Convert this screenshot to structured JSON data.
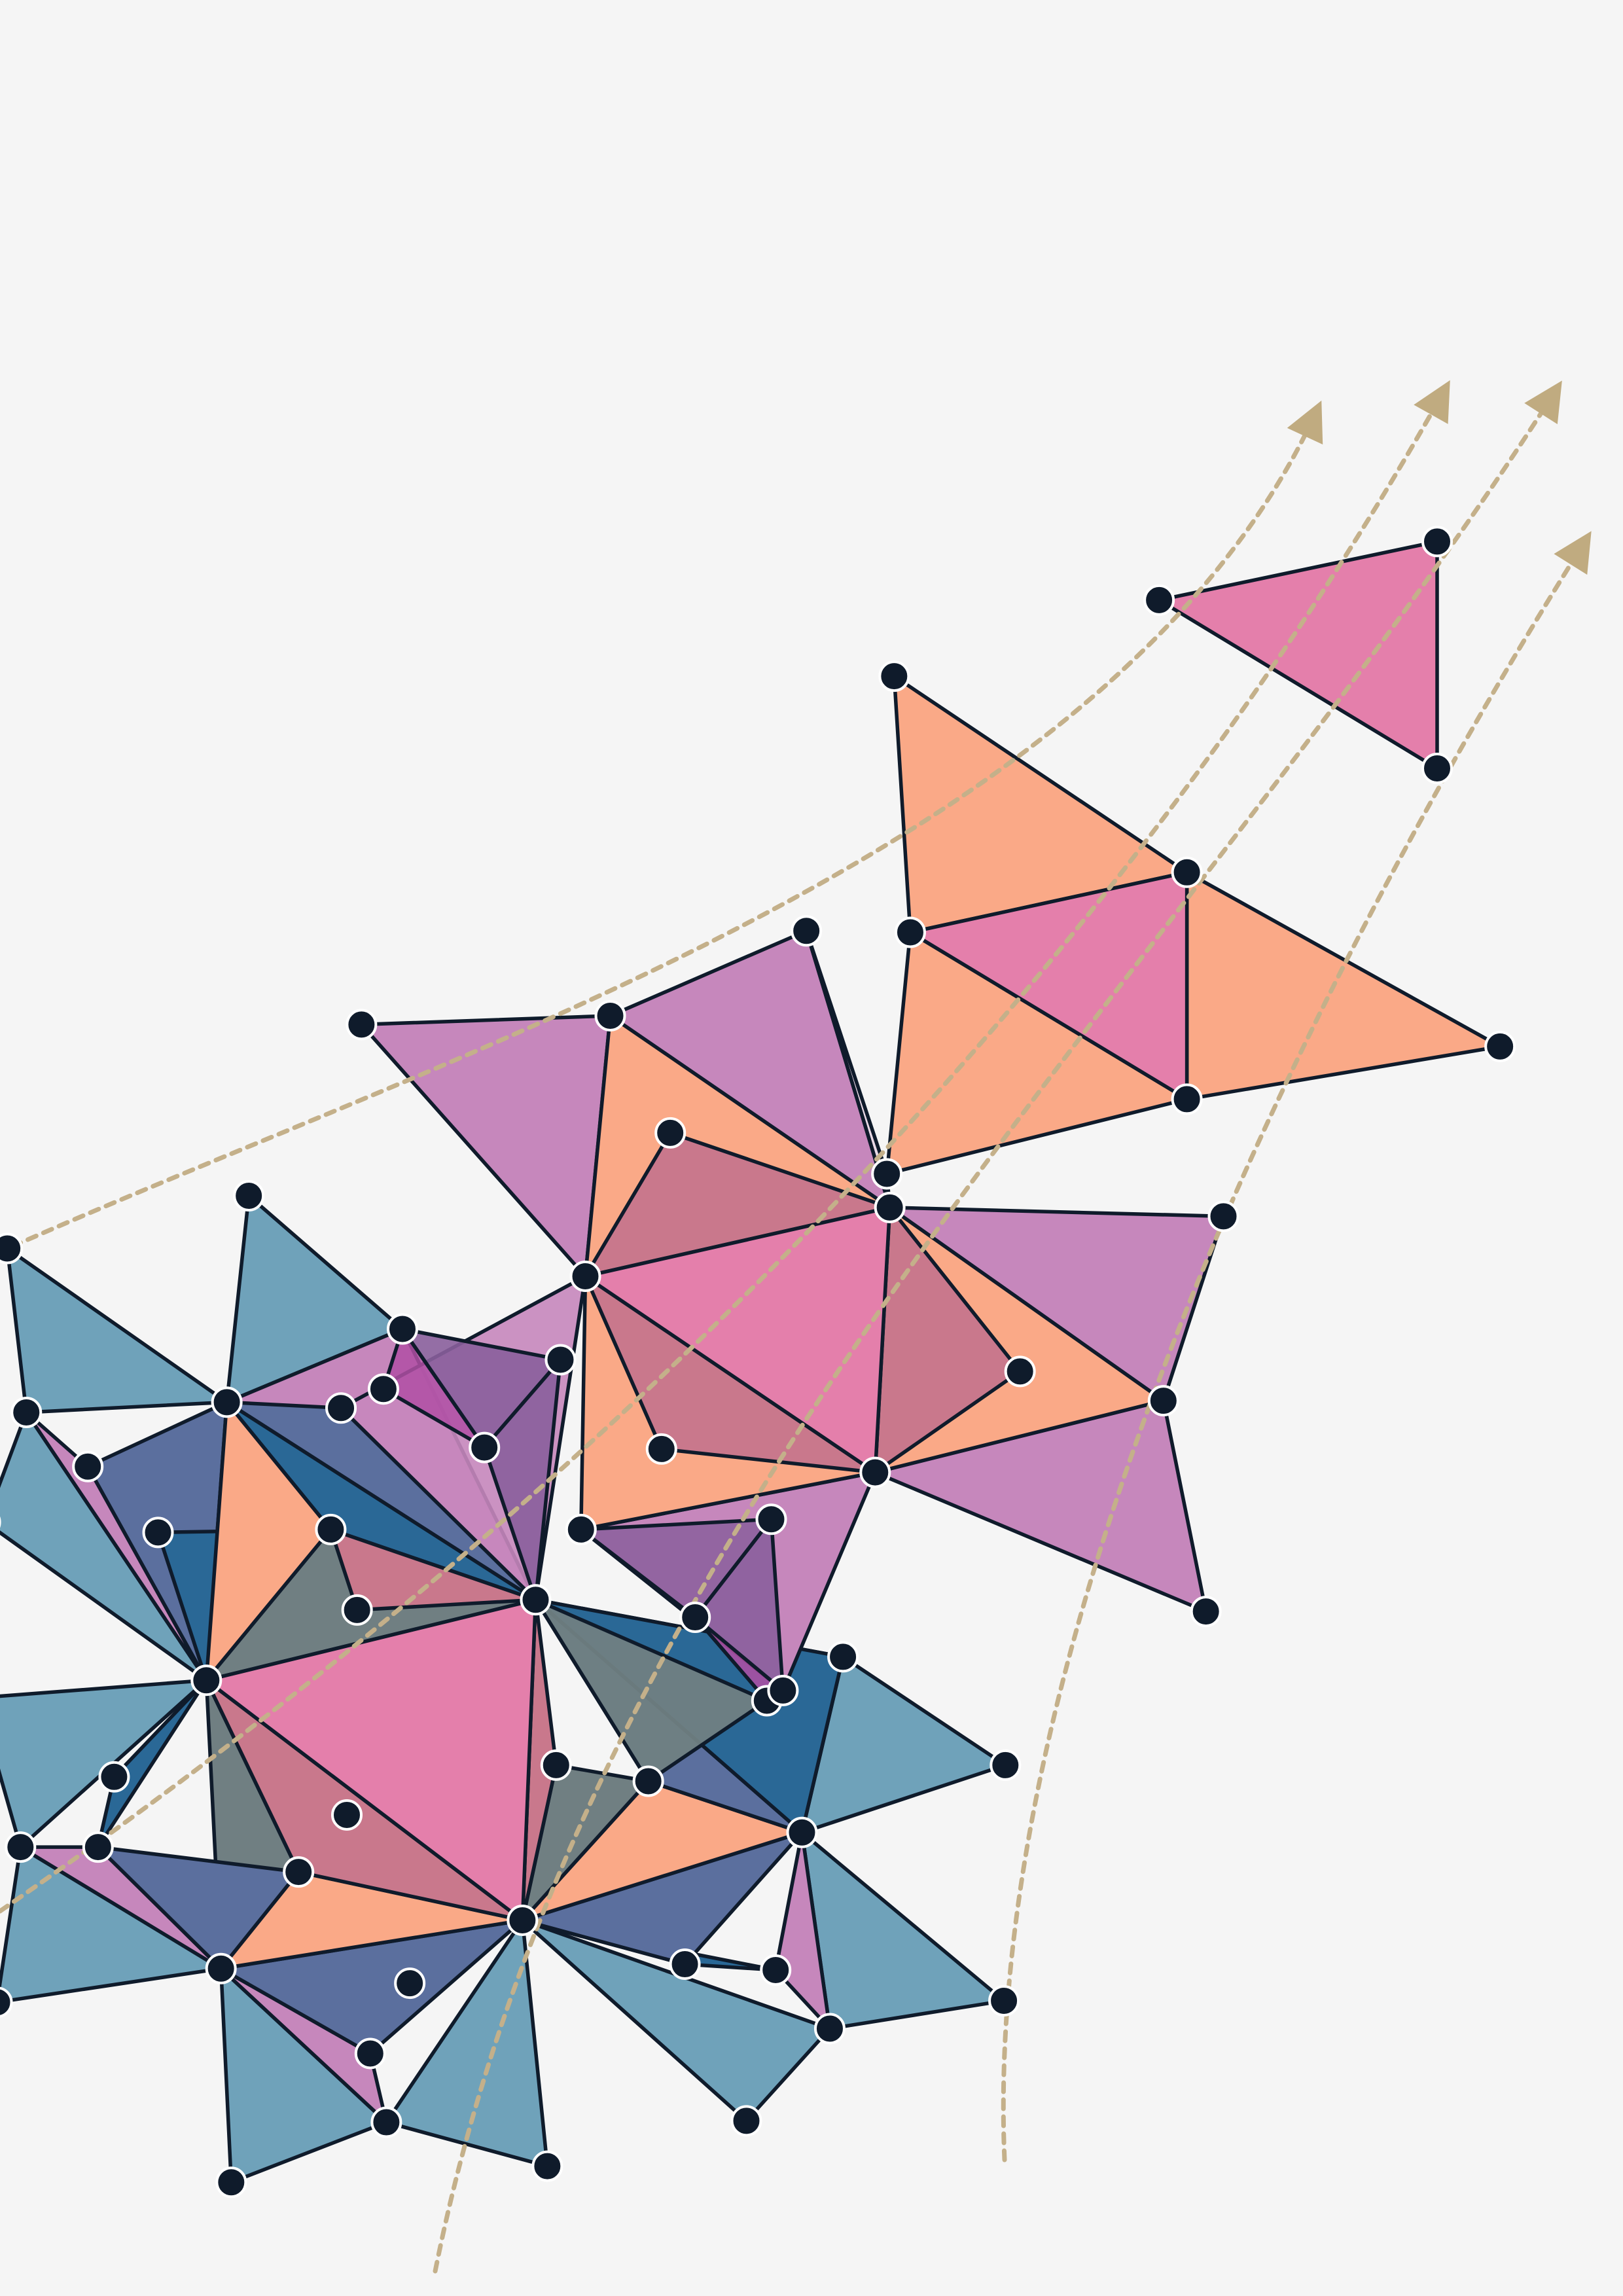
{
  "palette": {
    "background": "#f5f5f5",
    "steel_blue": "#6fa2ba",
    "deep_blue": "#2a6896",
    "indigo": "#5b6f9e",
    "slate": "#707f82",
    "orchid": "#c687bc",
    "pink": "#e47fab",
    "rose": "#c9788c",
    "peach": "#faa987",
    "purple": "#8a5f9c",
    "magenta": "#b04fa4",
    "node": "#0f1b2b",
    "node_faded": "#632660",
    "edge": "#0f1b2b",
    "path": "#c4b08a",
    "arrowhead": "#c0ab80"
  },
  "icons": [
    "arrowhead-icon"
  ],
  "triangle_tile_count": 72,
  "flow_path_count": 4
}
